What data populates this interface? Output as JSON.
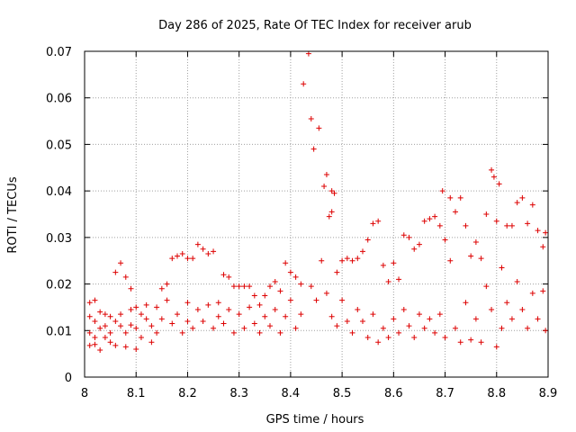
{
  "chart_data": {
    "type": "scatter",
    "title": "Day 286 of 2025, Rate Of TEC Index for receiver arub",
    "xlabel": "GPS time / hours",
    "ylabel": "ROTI / TECUs",
    "xlim": [
      8.0,
      8.9
    ],
    "ylim": [
      0,
      0.07
    ],
    "xticks": [
      "8",
      "8.1",
      "8.2",
      "8.3",
      "8.4",
      "8.5",
      "8.6",
      "8.7",
      "8.8",
      "8.9"
    ],
    "yticks": [
      "0",
      "0.01",
      "0.02",
      "0.03",
      "0.04",
      "0.05",
      "0.06",
      "0.07"
    ],
    "grid": true,
    "marker": "+",
    "series_color": "#dd0000",
    "series": [
      {
        "points": [
          [
            8.01,
            0.016
          ],
          [
            8.01,
            0.013
          ],
          [
            8.01,
            0.0095
          ],
          [
            8.01,
            0.0068
          ],
          [
            8.02,
            0.0165
          ],
          [
            8.02,
            0.012
          ],
          [
            8.02,
            0.0085
          ],
          [
            8.02,
            0.007
          ],
          [
            8.03,
            0.014
          ],
          [
            8.03,
            0.0105
          ],
          [
            8.03,
            0.0058
          ],
          [
            8.04,
            0.0135
          ],
          [
            8.04,
            0.011
          ],
          [
            8.04,
            0.0085
          ],
          [
            8.05,
            0.013
          ],
          [
            8.05,
            0.0095
          ],
          [
            8.05,
            0.0075
          ],
          [
            8.06,
            0.012
          ],
          [
            8.06,
            0.0225
          ],
          [
            8.06,
            0.0068
          ],
          [
            8.07,
            0.0245
          ],
          [
            8.07,
            0.011
          ],
          [
            8.07,
            0.0135
          ],
          [
            8.08,
            0.0215
          ],
          [
            8.08,
            0.0065
          ],
          [
            8.08,
            0.0095
          ],
          [
            8.09,
            0.019
          ],
          [
            8.09,
            0.0145
          ],
          [
            8.09,
            0.0112
          ],
          [
            8.1,
            0.006
          ],
          [
            8.1,
            0.0105
          ],
          [
            8.1,
            0.015
          ],
          [
            8.11,
            0.0135
          ],
          [
            8.11,
            0.0085
          ],
          [
            8.12,
            0.0125
          ],
          [
            8.12,
            0.0155
          ],
          [
            8.13,
            0.0075
          ],
          [
            8.13,
            0.011
          ],
          [
            8.14,
            0.015
          ],
          [
            8.14,
            0.0095
          ],
          [
            8.15,
            0.019
          ],
          [
            8.15,
            0.0125
          ],
          [
            8.16,
            0.02
          ],
          [
            8.16,
            0.0165
          ],
          [
            8.17,
            0.0255
          ],
          [
            8.17,
            0.0115
          ],
          [
            8.18,
            0.026
          ],
          [
            8.18,
            0.0135
          ],
          [
            8.19,
            0.0265
          ],
          [
            8.19,
            0.0095
          ],
          [
            8.2,
            0.0255
          ],
          [
            8.2,
            0.016
          ],
          [
            8.2,
            0.012
          ],
          [
            8.21,
            0.0255
          ],
          [
            8.21,
            0.0105
          ],
          [
            8.22,
            0.0285
          ],
          [
            8.22,
            0.0145
          ],
          [
            8.23,
            0.0275
          ],
          [
            8.23,
            0.012
          ],
          [
            8.24,
            0.0265
          ],
          [
            8.24,
            0.0155
          ],
          [
            8.25,
            0.027
          ],
          [
            8.25,
            0.0105
          ],
          [
            8.26,
            0.016
          ],
          [
            8.26,
            0.013
          ],
          [
            8.27,
            0.022
          ],
          [
            8.27,
            0.0115
          ],
          [
            8.28,
            0.0215
          ],
          [
            8.28,
            0.0145
          ],
          [
            8.29,
            0.0195
          ],
          [
            8.29,
            0.0095
          ],
          [
            8.3,
            0.0195
          ],
          [
            8.3,
            0.0135
          ],
          [
            8.31,
            0.0195
          ],
          [
            8.31,
            0.0105
          ],
          [
            8.32,
            0.0195
          ],
          [
            8.32,
            0.015
          ],
          [
            8.33,
            0.0175
          ],
          [
            8.33,
            0.0115
          ],
          [
            8.34,
            0.0155
          ],
          [
            8.34,
            0.0095
          ],
          [
            8.35,
            0.0175
          ],
          [
            8.35,
            0.013
          ],
          [
            8.36,
            0.0195
          ],
          [
            8.36,
            0.011
          ],
          [
            8.37,
            0.0205
          ],
          [
            8.37,
            0.0145
          ],
          [
            8.38,
            0.0185
          ],
          [
            8.38,
            0.0095
          ],
          [
            8.39,
            0.0245
          ],
          [
            8.39,
            0.013
          ],
          [
            8.4,
            0.0225
          ],
          [
            8.4,
            0.0165
          ],
          [
            8.41,
            0.0215
          ],
          [
            8.41,
            0.0105
          ],
          [
            8.42,
            0.02
          ],
          [
            8.42,
            0.0135
          ],
          [
            8.425,
            0.063
          ],
          [
            8.435,
            0.0695
          ],
          [
            8.44,
            0.0555
          ],
          [
            8.445,
            0.049
          ],
          [
            8.455,
            0.0535
          ],
          [
            8.44,
            0.0195
          ],
          [
            8.45,
            0.0165
          ],
          [
            8.46,
            0.025
          ],
          [
            8.465,
            0.041
          ],
          [
            8.47,
            0.0435
          ],
          [
            8.475,
            0.0345
          ],
          [
            8.48,
            0.04
          ],
          [
            8.48,
            0.0355
          ],
          [
            8.485,
            0.0395
          ],
          [
            8.47,
            0.018
          ],
          [
            8.48,
            0.013
          ],
          [
            8.49,
            0.0225
          ],
          [
            8.49,
            0.011
          ],
          [
            8.5,
            0.025
          ],
          [
            8.5,
            0.0165
          ],
          [
            8.51,
            0.0255
          ],
          [
            8.51,
            0.012
          ],
          [
            8.52,
            0.025
          ],
          [
            8.52,
            0.0095
          ],
          [
            8.53,
            0.0255
          ],
          [
            8.53,
            0.0145
          ],
          [
            8.54,
            0.027
          ],
          [
            8.54,
            0.012
          ],
          [
            8.55,
            0.0295
          ],
          [
            8.55,
            0.0085
          ],
          [
            8.56,
            0.033
          ],
          [
            8.56,
            0.0135
          ],
          [
            8.57,
            0.0335
          ],
          [
            8.57,
            0.0075
          ],
          [
            8.58,
            0.024
          ],
          [
            8.58,
            0.0105
          ],
          [
            8.59,
            0.0205
          ],
          [
            8.59,
            0.0085
          ],
          [
            8.6,
            0.0245
          ],
          [
            8.6,
            0.0125
          ],
          [
            8.61,
            0.021
          ],
          [
            8.61,
            0.0095
          ],
          [
            8.62,
            0.0305
          ],
          [
            8.62,
            0.0145
          ],
          [
            8.63,
            0.03
          ],
          [
            8.63,
            0.011
          ],
          [
            8.64,
            0.0275
          ],
          [
            8.64,
            0.0085
          ],
          [
            8.65,
            0.0285
          ],
          [
            8.65,
            0.0135
          ],
          [
            8.66,
            0.0335
          ],
          [
            8.66,
            0.0105
          ],
          [
            8.67,
            0.034
          ],
          [
            8.67,
            0.0125
          ],
          [
            8.68,
            0.0345
          ],
          [
            8.68,
            0.0095
          ],
          [
            8.69,
            0.0325
          ],
          [
            8.69,
            0.0135
          ],
          [
            8.695,
            0.04
          ],
          [
            8.7,
            0.0295
          ],
          [
            8.7,
            0.0085
          ],
          [
            8.71,
            0.0385
          ],
          [
            8.71,
            0.025
          ],
          [
            8.72,
            0.0355
          ],
          [
            8.72,
            0.0105
          ],
          [
            8.73,
            0.0385
          ],
          [
            8.73,
            0.0075
          ],
          [
            8.74,
            0.0325
          ],
          [
            8.74,
            0.016
          ],
          [
            8.75,
            0.026
          ],
          [
            8.75,
            0.008
          ],
          [
            8.76,
            0.029
          ],
          [
            8.76,
            0.0125
          ],
          [
            8.77,
            0.0255
          ],
          [
            8.77,
            0.0075
          ],
          [
            8.78,
            0.035
          ],
          [
            8.78,
            0.0195
          ],
          [
            8.79,
            0.0445
          ],
          [
            8.79,
            0.0145
          ],
          [
            8.795,
            0.043
          ],
          [
            8.8,
            0.0335
          ],
          [
            8.8,
            0.0065
          ],
          [
            8.805,
            0.0415
          ],
          [
            8.81,
            0.0235
          ],
          [
            8.81,
            0.0105
          ],
          [
            8.82,
            0.0325
          ],
          [
            8.82,
            0.016
          ],
          [
            8.83,
            0.0325
          ],
          [
            8.83,
            0.0125
          ],
          [
            8.84,
            0.0375
          ],
          [
            8.84,
            0.0205
          ],
          [
            8.85,
            0.0385
          ],
          [
            8.85,
            0.0145
          ],
          [
            8.86,
            0.033
          ],
          [
            8.86,
            0.0105
          ],
          [
            8.87,
            0.037
          ],
          [
            8.87,
            0.018
          ],
          [
            8.88,
            0.0315
          ],
          [
            8.88,
            0.0125
          ],
          [
            8.89,
            0.028
          ],
          [
            8.89,
            0.0185
          ],
          [
            8.895,
            0.031
          ],
          [
            8.895,
            0.01
          ]
        ]
      }
    ]
  }
}
